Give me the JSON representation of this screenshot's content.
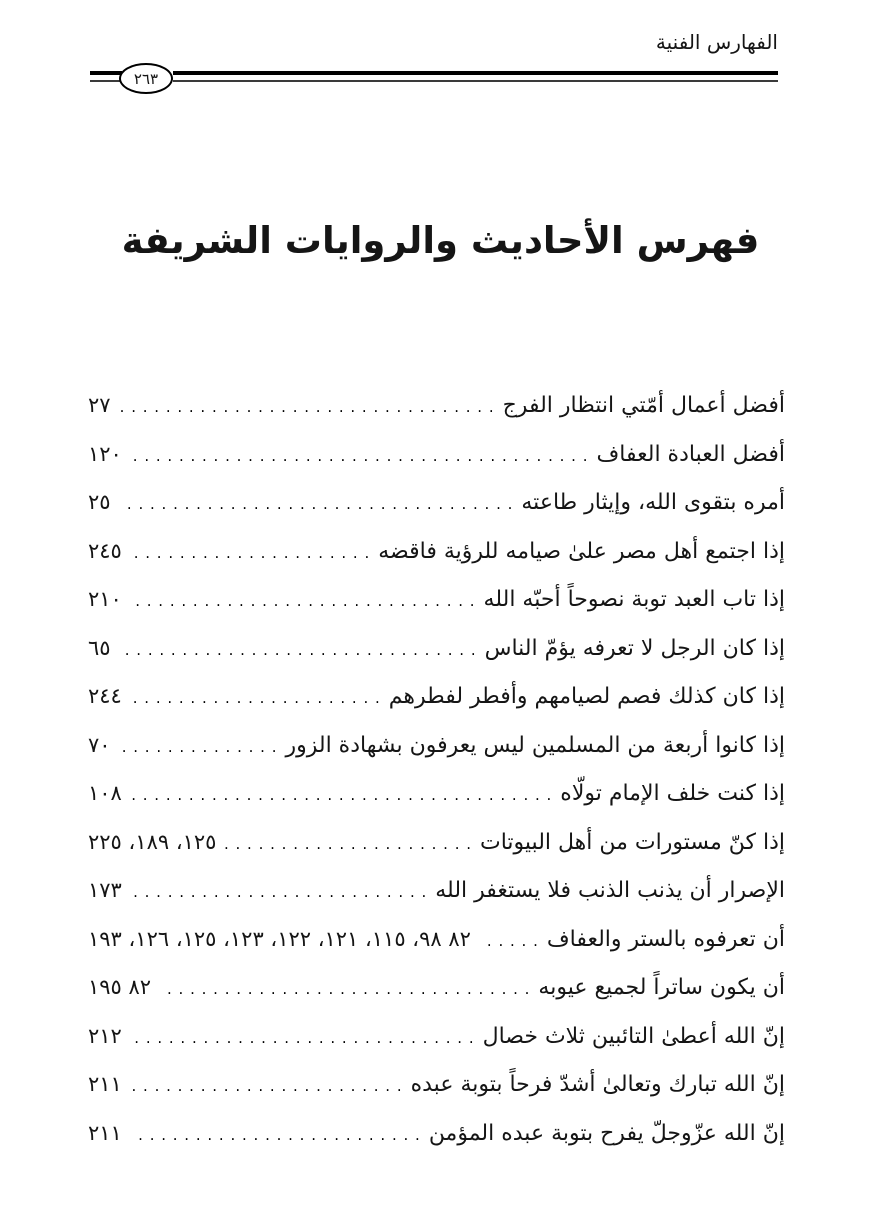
{
  "page": {
    "header": "الفهارس الفنية",
    "page_number": "٢٦٣",
    "title": "فهرس الأحاديث والروايات الشريفة"
  },
  "colors": {
    "ink": "#151515",
    "paper": "#ffffff"
  },
  "index_entries": [
    {
      "text": "أفضل أعمال أمّتي انتظار الفرج",
      "pages": "٢٧"
    },
    {
      "text": "أفضل العبادة العفاف",
      "pages": "١٢٠"
    },
    {
      "text": "أمره بتقوى الله، وإيثار طاعته",
      "pages": "٢٥"
    },
    {
      "text": "إذا اجتمع أهل مصر علىٰ صيامه للرؤية فاقضه",
      "pages": "٢٤٥"
    },
    {
      "text": "إذا تاب العبد توبة نصوحاً أحبّه الله",
      "pages": "٢١٠"
    },
    {
      "text": "إذا كان الرجل لا تعرفه يؤمّ الناس",
      "pages": "٦٥"
    },
    {
      "text": "إذا كان كذلك فصم لصيامهم وأفطر لفطرهم",
      "pages": "٢٤٤"
    },
    {
      "text": "إذا كانوا أربعة من المسلمين ليس يعرفون بشهادة الزور",
      "pages": "٧٠"
    },
    {
      "text": "إذا كنت خلف الإمام تولّاه",
      "pages": "١٠٨"
    },
    {
      "text": "إذا كنّ مستورات من أهل البيوتات",
      "pages": "١٢٥، ١٨٩، ٢٢٥"
    },
    {
      "text": "الإصرار أن يذنب الذنب فلا يستغفر الله",
      "pages": "١٧٣"
    },
    {
      "text": "أن تعرفوه بالستر والعفاف",
      "pages": "٨٢ ٩٨، ١١٥، ١٢١، ١٢٢، ١٢٣، ١٢٥، ١٢٦، ١٩٣"
    },
    {
      "text": "أن يكون ساتراً لجميع عيوبه",
      "pages": "٨٢ ١٩٥"
    },
    {
      "text": "إنّ الله أعطىٰ التائبين ثلاث خصال",
      "pages": "٢١٢"
    },
    {
      "text": "إنّ الله تبارك وتعالىٰ أشدّ فرحاً بتوبة عبده",
      "pages": "٢١١"
    },
    {
      "text": "إنّ الله عزّوجلّ يفرح بتوبة عبده المؤمن",
      "pages": "٢١١"
    }
  ]
}
